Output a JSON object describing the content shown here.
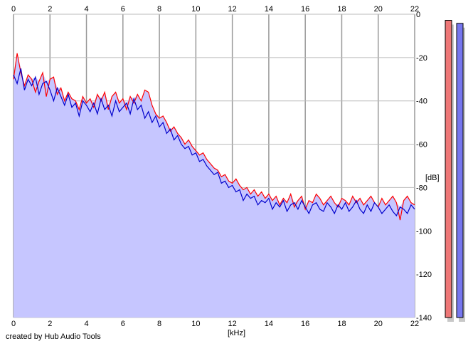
{
  "chart_data": {
    "type": "area",
    "title": "",
    "xlabel": "[kHz]",
    "ylabel": "[dB]",
    "xlim": [
      0,
      22
    ],
    "ylim": [
      -140,
      0
    ],
    "x_ticks": [
      0,
      2,
      4,
      6,
      8,
      10,
      12,
      14,
      16,
      18,
      20,
      22
    ],
    "y_ticks": [
      0,
      -20,
      -40,
      -60,
      -80,
      -100,
      -120,
      -140
    ],
    "grid": true,
    "fill_color": "#c6c6ff",
    "series": [
      {
        "color": "#ff0000",
        "x": [
          0,
          0.2,
          0.4,
          0.6,
          0.8,
          1.0,
          1.2,
          1.4,
          1.6,
          1.8,
          2.0,
          2.2,
          2.4,
          2.6,
          2.8,
          3.0,
          3.2,
          3.4,
          3.6,
          3.8,
          4.0,
          4.2,
          4.4,
          4.6,
          4.8,
          5.0,
          5.2,
          5.4,
          5.6,
          5.8,
          6.0,
          6.2,
          6.4,
          6.6,
          6.8,
          7.0,
          7.2,
          7.4,
          7.6,
          7.8,
          8.0,
          8.2,
          8.4,
          8.6,
          8.8,
          9.0,
          9.2,
          9.4,
          9.6,
          9.8,
          10.0,
          10.2,
          10.4,
          10.6,
          10.8,
          11.0,
          11.2,
          11.4,
          11.6,
          11.8,
          12.0,
          12.2,
          12.4,
          12.6,
          12.8,
          13.0,
          13.2,
          13.4,
          13.6,
          13.8,
          14.0,
          14.2,
          14.4,
          14.6,
          14.8,
          15.0,
          15.2,
          15.4,
          15.6,
          15.8,
          16.0,
          16.2,
          16.4,
          16.6,
          16.8,
          17.0,
          17.2,
          17.4,
          17.6,
          17.8,
          18.0,
          18.2,
          18.4,
          18.6,
          18.8,
          19.0,
          19.2,
          19.4,
          19.6,
          19.8,
          20.0,
          20.2,
          20.4,
          20.6,
          20.8,
          21.0,
          21.2,
          21.4,
          21.6,
          21.8,
          22.0
        ],
        "y": [
          -30,
          -18,
          -27,
          -33,
          -28,
          -30,
          -36,
          -31,
          -27,
          -38,
          -30,
          -29,
          -37,
          -34,
          -40,
          -36,
          -39,
          -40,
          -44,
          -38,
          -41,
          -39,
          -43,
          -37,
          -40,
          -36,
          -44,
          -38,
          -36,
          -41,
          -39,
          -44,
          -38,
          -41,
          -37,
          -40,
          -35,
          -36,
          -42,
          -46,
          -48,
          -47,
          -50,
          -54,
          -52,
          -55,
          -57,
          -60,
          -58,
          -61,
          -63,
          -65,
          -64,
          -67,
          -69,
          -71,
          -72,
          -75,
          -74,
          -77,
          -78,
          -76,
          -79,
          -81,
          -80,
          -83,
          -81,
          -84,
          -82,
          -85,
          -83,
          -86,
          -84,
          -88,
          -85,
          -87,
          -83,
          -89,
          -86,
          -84,
          -90,
          -86,
          -87,
          -83,
          -85,
          -88,
          -86,
          -84,
          -87,
          -89,
          -85,
          -86,
          -88,
          -84,
          -87,
          -85,
          -88,
          -86,
          -84,
          -87,
          -89,
          -85,
          -88,
          -86,
          -84,
          -87,
          -95,
          -86,
          -84,
          -87,
          -88
        ]
      },
      {
        "color": "#0000cc",
        "x": [
          0,
          0.2,
          0.4,
          0.6,
          0.8,
          1.0,
          1.2,
          1.4,
          1.6,
          1.8,
          2.0,
          2.2,
          2.4,
          2.6,
          2.8,
          3.0,
          3.2,
          3.4,
          3.6,
          3.8,
          4.0,
          4.2,
          4.4,
          4.6,
          4.8,
          5.0,
          5.2,
          5.4,
          5.6,
          5.8,
          6.0,
          6.2,
          6.4,
          6.6,
          6.8,
          7.0,
          7.2,
          7.4,
          7.6,
          7.8,
          8.0,
          8.2,
          8.4,
          8.6,
          8.8,
          9.0,
          9.2,
          9.4,
          9.6,
          9.8,
          10.0,
          10.2,
          10.4,
          10.6,
          10.8,
          11.0,
          11.2,
          11.4,
          11.6,
          11.8,
          12.0,
          12.2,
          12.4,
          12.6,
          12.8,
          13.0,
          13.2,
          13.4,
          13.6,
          13.8,
          14.0,
          14.2,
          14.4,
          14.6,
          14.8,
          15.0,
          15.2,
          15.4,
          15.6,
          15.8,
          16.0,
          16.2,
          16.4,
          16.6,
          16.8,
          17.0,
          17.2,
          17.4,
          17.6,
          17.8,
          18.0,
          18.2,
          18.4,
          18.6,
          18.8,
          19.0,
          19.2,
          19.4,
          19.6,
          19.8,
          20.0,
          20.2,
          20.4,
          20.6,
          20.8,
          21.0,
          21.2,
          21.4,
          21.6,
          21.8,
          22.0
        ],
        "y": [
          -28,
          -32,
          -25,
          -35,
          -30,
          -33,
          -29,
          -37,
          -32,
          -31,
          -35,
          -40,
          -34,
          -38,
          -42,
          -37,
          -43,
          -41,
          -47,
          -40,
          -42,
          -45,
          -41,
          -46,
          -39,
          -44,
          -42,
          -47,
          -40,
          -45,
          -43,
          -41,
          -46,
          -39,
          -44,
          -42,
          -48,
          -45,
          -50,
          -47,
          -52,
          -50,
          -55,
          -53,
          -58,
          -56,
          -60,
          -62,
          -61,
          -65,
          -64,
          -68,
          -67,
          -70,
          -72,
          -74,
          -73,
          -78,
          -77,
          -80,
          -79,
          -82,
          -81,
          -86,
          -83,
          -85,
          -84,
          -88,
          -86,
          -87,
          -85,
          -90,
          -87,
          -89,
          -86,
          -91,
          -88,
          -87,
          -90,
          -86,
          -89,
          -92,
          -88,
          -87,
          -90,
          -91,
          -87,
          -89,
          -92,
          -88,
          -90,
          -87,
          -91,
          -89,
          -86,
          -90,
          -92,
          -88,
          -91,
          -87,
          -89,
          -92,
          -90,
          -88,
          -91,
          -93,
          -89,
          -90,
          -92,
          -88,
          -90
        ]
      }
    ],
    "level_meters": [
      {
        "color": "#ee7777",
        "level": 0.98
      },
      {
        "color": "#7777ee",
        "level": 0.97
      }
    ]
  },
  "footer": {
    "credit": "created by Hub Audio Tools"
  }
}
